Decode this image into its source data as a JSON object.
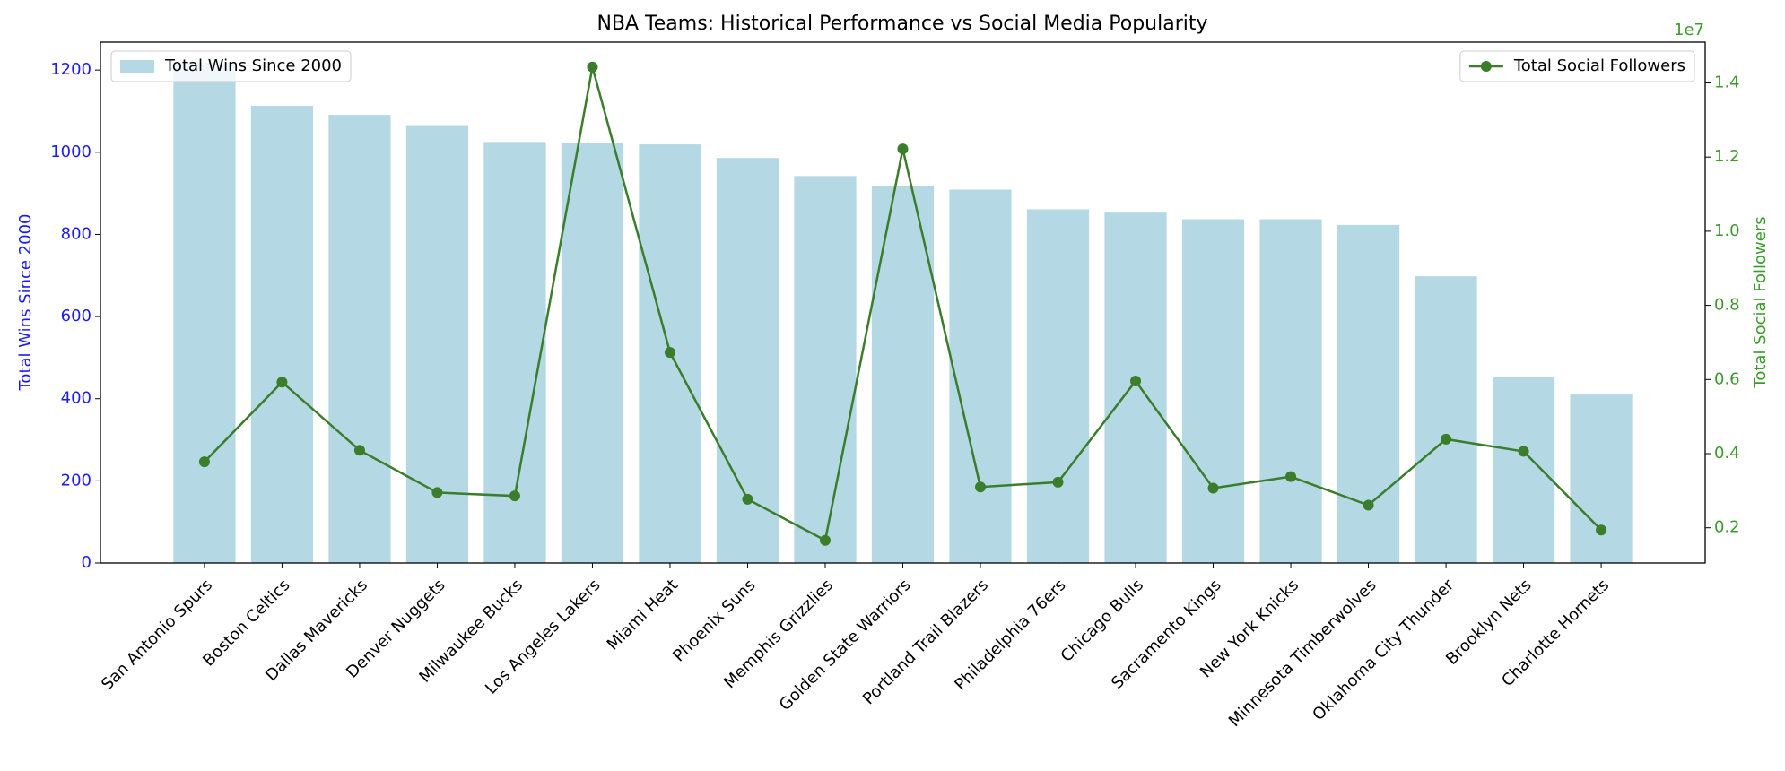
{
  "chart_data": {
    "type": "bar_line",
    "title": "NBA Teams: Historical Performance vs Social Media Popularity",
    "ylabel": "Total Wins Since 2000",
    "y2label": "Total Social Followers",
    "y2_offset": "1e7",
    "categories": [
      "San Antonio Spurs",
      "Boston Celtics",
      "Dallas Mavericks",
      "Denver Nuggets",
      "Milwaukee Bucks",
      "Los Angeles Lakers",
      "Miami Heat",
      "Phoenix Suns",
      "Memphis Grizzlies",
      "Golden State Warriors",
      "Portland Trail Blazers",
      "Philadelphia 76ers",
      "Chicago Bulls",
      "Sacramento Kings",
      "New York Knicks",
      "Minnesota Timberwolves",
      "Oklahoma City Thunder",
      "Brooklyn Nets",
      "Charlotte Hornets"
    ],
    "series": [
      {
        "name": "Total Wins Since 2000",
        "type": "bar",
        "color": "#b4d8e4",
        "legend": "upper left",
        "values": [
          1219,
          1113,
          1091,
          1066,
          1025,
          1022,
          1019,
          986,
          942,
          917,
          909,
          861,
          853,
          837,
          837,
          823,
          698,
          452,
          410
        ]
      },
      {
        "name": "Total Social Followers",
        "type": "line",
        "axis": "y2",
        "color": "#3a7d2a",
        "legend": "upper right",
        "values": [
          3780000,
          5930000,
          4090000,
          2950000,
          2860000,
          14430000,
          6730000,
          2770000,
          1660000,
          12220000,
          3100000,
          3230000,
          5960000,
          3070000,
          3380000,
          2610000,
          4390000,
          4060000,
          1940000
        ]
      }
    ],
    "ylim": [
      0,
      1268
    ],
    "yticks": [
      0,
      200,
      400,
      600,
      800,
      1000,
      1200
    ],
    "y2lim": [
      1050000,
      15100000
    ],
    "y2ticks": [
      {
        "value": 2000000,
        "label": "0.2"
      },
      {
        "value": 4000000,
        "label": "0.4"
      },
      {
        "value": 6000000,
        "label": "0.6"
      },
      {
        "value": 8000000,
        "label": "0.8"
      },
      {
        "value": 10000000,
        "label": "1.0"
      },
      {
        "value": 12000000,
        "label": "1.2"
      },
      {
        "value": 14000000,
        "label": "1.4"
      }
    ],
    "grid": false
  }
}
